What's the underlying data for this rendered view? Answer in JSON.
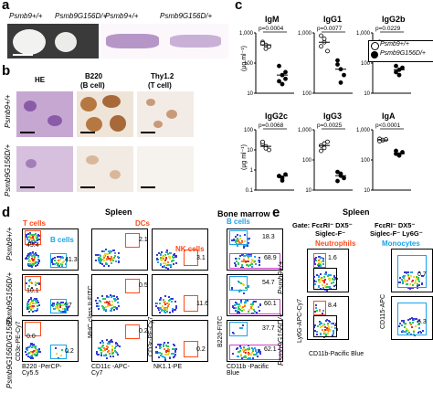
{
  "panels": {
    "a": "a",
    "b": "b",
    "c": "c",
    "d": "d",
    "e": "e"
  },
  "colors": {
    "gate_orange": "#ff4a1a",
    "gate_blue": "#1aa3e8",
    "label_orange": "#ff4a1a",
    "label_blue": "#1aa3e8"
  },
  "panel_a": {
    "genotypes": [
      "Psmb9+/+",
      "Psmb9G156D/+",
      "Psmb9+/+",
      "Psmb9G156D/+"
    ]
  },
  "panel_b": {
    "columns": [
      "HE",
      "B220",
      "(B cell)",
      "Thy1.2",
      "(T cell)"
    ],
    "rows": [
      "Psmb9+/+",
      "Psmb9G156D/+"
    ]
  },
  "panel_c": {
    "ylabel": "(μg ml⁻¹)",
    "legend": [
      "Psmb9+/+",
      "Psmb9G156D/+"
    ],
    "chart_data": [
      {
        "type": "scatter",
        "title": "IgM",
        "pvalue": "p=0.0004",
        "ylim": [
          10,
          1000
        ],
        "yticks": [
          "10",
          "100",
          "1,000"
        ],
        "series": [
          {
            "name": "Psmb9+/+",
            "values": [
              500,
              400,
              350,
              450,
              300
            ]
          },
          {
            "name": "Psmb9G156D/+",
            "values": [
              80,
              40,
              30,
              25,
              20,
              50
            ]
          }
        ]
      },
      {
        "type": "scatter",
        "title": "IgG1",
        "pvalue": "p=0.0077",
        "ylim": [
          100,
          1000
        ],
        "yticks": [
          "100",
          "1,000"
        ],
        "series": [
          {
            "name": "Psmb9+/+",
            "values": [
              900,
              700,
              500,
              600,
              800
            ]
          },
          {
            "name": "Psmb9G156D/+",
            "values": [
              300,
              250,
              200,
              350,
              150
            ]
          }
        ]
      },
      {
        "type": "scatter",
        "title": "IgG2b",
        "pvalue": "p=0.0229",
        "ylim": [
          10,
          1000
        ],
        "yticks": [
          "10",
          "100",
          "1,000"
        ],
        "series": [
          {
            "name": "Psmb9+/+",
            "values": [
              500,
              200,
              150,
              300,
              250
            ]
          },
          {
            "name": "Psmb9G156D/+",
            "values": [
              80,
              60,
              70,
              50,
              40
            ]
          }
        ]
      },
      {
        "type": "scatter",
        "title": "IgG2c",
        "pvalue": "p=0.0068",
        "ylim": [
          0.1,
          100
        ],
        "yticks": [
          "0.1",
          "1",
          "10",
          "100"
        ],
        "series": [
          {
            "name": "Psmb9+/+",
            "values": [
              20,
              15,
              10,
              25,
              12
            ]
          },
          {
            "name": "Psmb9G156D/+",
            "values": [
              0.5,
              0.4,
              0.6,
              0.5,
              0.3
            ]
          }
        ]
      },
      {
        "type": "scatter",
        "title": "IgG3",
        "pvalue": "p=0.0025",
        "ylim": [
          10,
          1000
        ],
        "yticks": [
          "10",
          "100",
          "1,000"
        ],
        "series": [
          {
            "name": "Psmb9+/+",
            "values": [
              300,
              250,
              400,
              200,
              350
            ]
          },
          {
            "name": "Psmb9G156D/+",
            "values": [
              40,
              30,
              25,
              20,
              35
            ]
          }
        ]
      },
      {
        "type": "scatter",
        "title": "IgA",
        "pvalue": "p<0.0001",
        "ylim": [
          10,
          1000
        ],
        "yticks": [
          "10",
          "100",
          "1,000"
        ],
        "series": [
          {
            "name": "Psmb9+/+",
            "values": [
              500,
              450,
              480,
              420,
              460
            ]
          },
          {
            "name": "Psmb9G156D/+",
            "values": [
              200,
              150,
              180,
              160,
              140
            ]
          }
        ]
      }
    ]
  },
  "panel_d": {
    "title_spleen": "Spleen",
    "title_bm": "Bone marrow",
    "rows": [
      "Psmb9+/+",
      "Psmb9G156D/+",
      "Psmb9G156D/G156D"
    ],
    "labels": {
      "tcells": "T cells",
      "bcells": "B cells",
      "dcs": "DCs",
      "nkcells": "NK cells",
      "bcells_bm": "B cells"
    },
    "xaxes": [
      "B220 -PerCP-Cy5.5",
      "CD11c -APC-Cy7",
      "NK1.1-PE",
      "CD11b -Pacific Blue"
    ],
    "yaxes": [
      "CD3ε-PE-Cy7",
      "MHC class II-FITC",
      "CD3ε-PE-Cy7",
      "B220-FITC"
    ],
    "values": {
      "col1": [
        [
          "45.4",
          "41.3"
        ],
        [
          "10.1",
          "37"
        ],
        [
          "0.0",
          "0.2"
        ]
      ],
      "col2": [
        "2.1",
        "0.5",
        "0.2"
      ],
      "col3": [
        "3.1",
        "11.6",
        "0.2"
      ],
      "col4": [
        [
          "18.3",
          "68.9"
        ],
        [
          "54.7",
          "60.1"
        ],
        [
          "37.7",
          "62.1"
        ]
      ]
    }
  },
  "panel_e": {
    "title": "Spleen",
    "gate1": "Gate: FcεRI⁻ DX5⁻",
    "gate1b": "Siglec-F⁻",
    "gate2": "FcεRI⁻ DX5⁻",
    "gate2b": "Siglec-F⁻ Ly6G⁻",
    "neutrophils": "Neutrophils",
    "monocytes": "Monocytes",
    "rows": [
      "Psmb9+/+",
      "Psmb9G156D/+"
    ],
    "values": [
      "1.6",
      "0.7",
      "8.4",
      "6.3"
    ],
    "xaxis": "CD11b-Pacific Blue",
    "yaxis1": "Ly6G-APC-Cy7",
    "yaxis2": "CD115-APC"
  }
}
